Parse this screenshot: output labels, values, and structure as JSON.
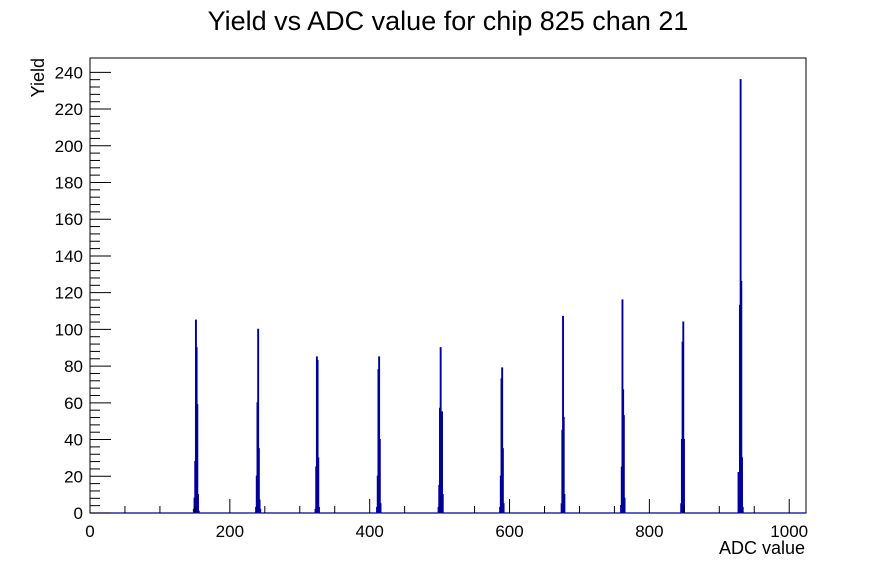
{
  "chart_data": {
    "type": "histogram",
    "title": "Yield vs ADC value for chip 825 chan 21",
    "x_label": "ADC value",
    "y_label": "Yield",
    "color": "#000099",
    "bins": [
      0,
      148,
      149,
      150,
      151,
      152,
      153,
      154,
      155,
      156,
      237,
      238,
      239,
      240,
      241,
      242,
      243,
      244,
      322,
      323,
      324,
      325,
      326,
      327,
      328,
      410,
      411,
      412,
      413,
      414,
      415,
      416,
      498,
      499,
      500,
      501,
      502,
      503,
      504,
      505,
      586,
      587,
      588,
      589,
      590,
      591,
      592,
      674,
      675,
      676,
      677,
      678,
      679,
      759,
      760,
      761,
      762,
      763,
      764,
      765,
      845,
      846,
      847,
      848,
      849,
      850,
      927,
      928,
      929,
      930,
      931,
      932,
      933,
      934,
      1024
    ],
    "counts": [
      0,
      2,
      8,
      28,
      105,
      90,
      59,
      10,
      1,
      0,
      3,
      20,
      60,
      100,
      35,
      7,
      2,
      0,
      2,
      25,
      85,
      83,
      30,
      3,
      0,
      3,
      20,
      78,
      85,
      40,
      5,
      0,
      3,
      15,
      57,
      90,
      50,
      55,
      10,
      0,
      3,
      20,
      73,
      79,
      35,
      5,
      0,
      5,
      45,
      107,
      52,
      10,
      0,
      4,
      25,
      116,
      67,
      53,
      8,
      0,
      5,
      40,
      93,
      104,
      40,
      0,
      22,
      7,
      113,
      236,
      126,
      30,
      3,
      0
    ],
    "xlim": [
      0,
      1024
    ],
    "ylim": [
      0,
      247.8
    ],
    "xticks": [
      0,
      200,
      400,
      600,
      800,
      1000
    ],
    "yticks": [
      0,
      20,
      40,
      60,
      80,
      100,
      120,
      140,
      160,
      180,
      200,
      220,
      240
    ]
  }
}
